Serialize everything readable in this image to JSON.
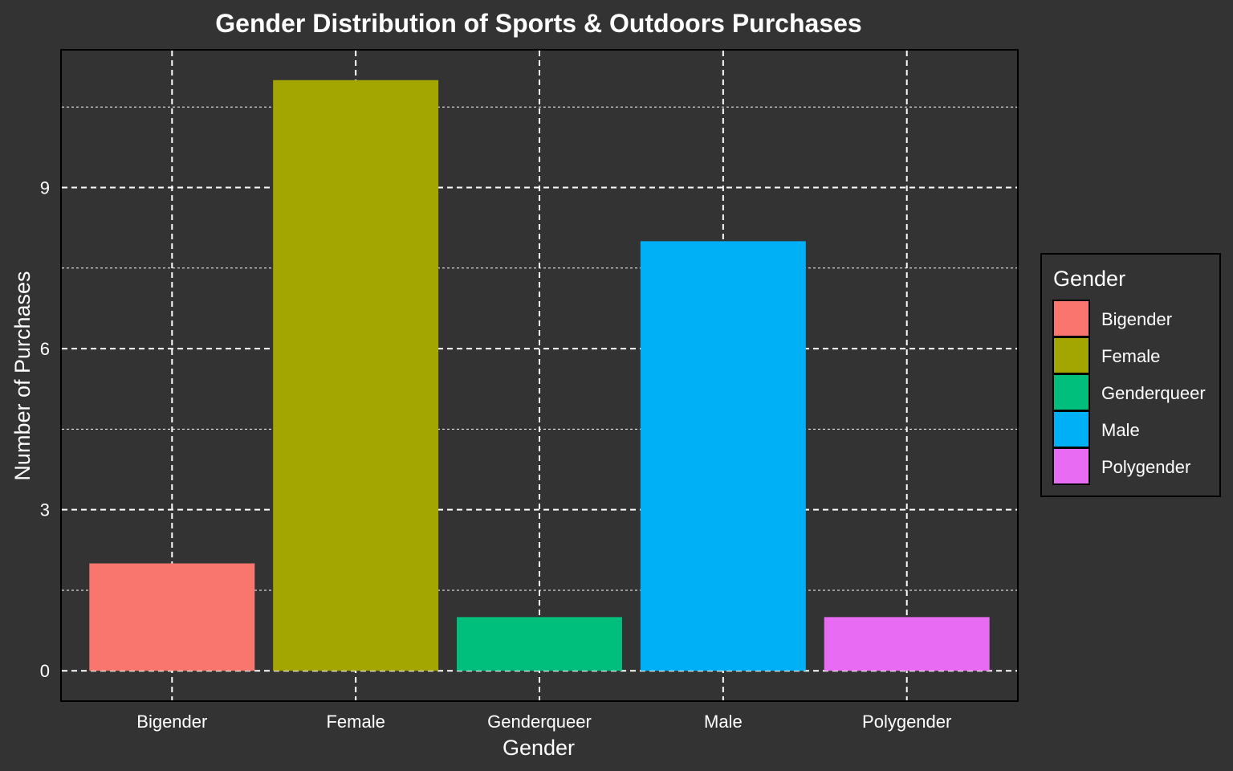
{
  "chart_data": {
    "type": "bar",
    "title": "Gender Distribution of Sports & Outdoors Purchases",
    "xlabel": "Gender",
    "ylabel": "Number of Purchases",
    "categories": [
      "Bigender",
      "Female",
      "Genderqueer",
      "Male",
      "Polygender"
    ],
    "values": [
      2,
      11,
      1,
      8,
      1
    ],
    "colors": [
      "#F8766D",
      "#A3A500",
      "#00BF7D",
      "#00B0F6",
      "#E76BF3"
    ],
    "ylim": [
      -0.55,
      11.55
    ],
    "yticks": [
      0,
      3,
      6,
      9
    ],
    "yticks_minor": [
      1.5,
      4.5,
      7.5,
      10.5
    ],
    "grid": true,
    "legend": {
      "title": "Gender",
      "position": "right",
      "items": [
        "Bigender",
        "Female",
        "Genderqueer",
        "Male",
        "Polygender"
      ]
    },
    "colors_style": {
      "background": "#333333",
      "text": "#FFFFFF",
      "grid": "#FFFFFF",
      "panel_border": "#000000"
    }
  }
}
